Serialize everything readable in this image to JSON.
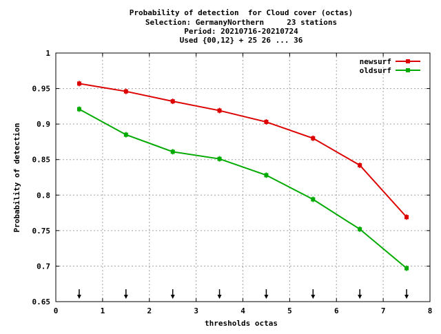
{
  "chart_data": {
    "type": "line",
    "title_lines": [
      "Probability of detection  for Cloud cover (octas)",
      "Selection: GermanyNorthern     23 stations",
      "Period: 20210716-20210724",
      "Used {00,12} + 25 26 ... 36"
    ],
    "xlabel": "thresholds octas",
    "ylabel": "Probability of detection",
    "xlim": [
      0,
      8
    ],
    "ylim": [
      0.65,
      1
    ],
    "x_ticks": [
      0,
      1,
      2,
      3,
      4,
      5,
      6,
      7,
      8
    ],
    "x_tick_labels": [
      "0",
      "1",
      "2",
      "3",
      "4",
      "5",
      "6",
      "7",
      "8"
    ],
    "y_ticks": [
      0.65,
      0.7,
      0.75,
      0.8,
      0.85,
      0.9,
      0.95,
      1
    ],
    "y_tick_labels": [
      "0.65",
      "0.7",
      "0.75",
      "0.8",
      "0.85",
      "0.9",
      "0.95",
      "1"
    ],
    "grid": true,
    "legend_position": "top-right",
    "x": [
      0.5,
      1.5,
      2.5,
      3.5,
      4.5,
      5.5,
      6.5,
      7.5
    ],
    "series": [
      {
        "name": "newsurf",
        "color": "#dd0000",
        "values": [
          0.957,
          0.946,
          0.932,
          0.919,
          0.903,
          0.88,
          0.842,
          0.769
        ]
      },
      {
        "name": "oldsurf",
        "color": "#00aa00",
        "values": [
          0.921,
          0.885,
          0.861,
          0.851,
          0.828,
          0.794,
          0.752,
          0.697
        ]
      }
    ],
    "arrow_markers_x": [
      0.5,
      1.5,
      2.5,
      3.5,
      4.5,
      5.5,
      6.5,
      7.5
    ]
  }
}
